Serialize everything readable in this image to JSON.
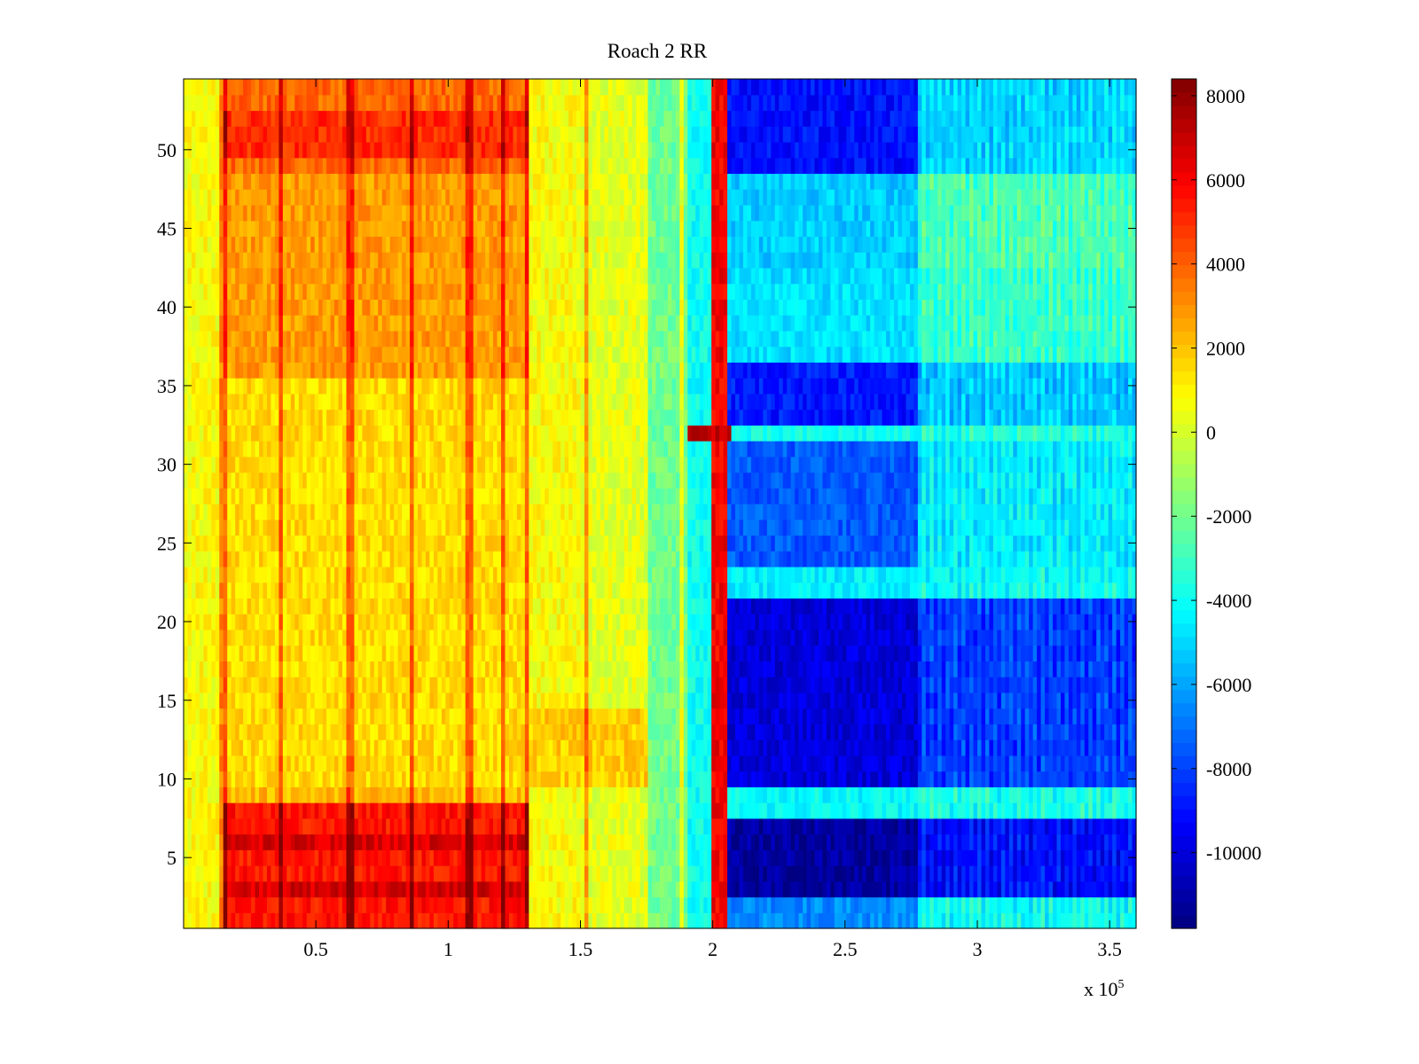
{
  "chart_data": {
    "type": "heatmap",
    "title": "Roach 2 RR",
    "xlabel": "",
    "ylabel": "",
    "x_multiplier_label": "x 10",
    "x_multiplier_exponent": "5",
    "xlim": [
      0,
      360000
    ],
    "ylim": [
      0.5,
      54.5
    ],
    "x_ticks": [
      50000,
      100000,
      150000,
      200000,
      250000,
      300000,
      350000
    ],
    "x_tick_labels": [
      "0.5",
      "1",
      "1.5",
      "2",
      "2.5",
      "3",
      "3.5"
    ],
    "y_ticks": [
      5,
      10,
      15,
      20,
      25,
      30,
      35,
      40,
      45,
      50
    ],
    "y_tick_labels": [
      "5",
      "10",
      "15",
      "20",
      "25",
      "30",
      "35",
      "40",
      "45",
      "50"
    ],
    "rows": 54,
    "colorbar": {
      "colormap": "jet",
      "clim": [
        -11800,
        8400
      ],
      "ticks": [
        8000,
        6000,
        4000,
        2000,
        0,
        -2000,
        -4000,
        -6000,
        -8000,
        -10000
      ],
      "tick_labels": [
        "8000",
        "6000",
        "4000",
        "2000",
        "0",
        "-2000",
        "-4000",
        "-6000",
        "-8000",
        "-10000"
      ]
    },
    "column_bands": [
      {
        "x_start": 0,
        "x_end": 130000,
        "approx_value": 1500
      },
      {
        "x_start": 130000,
        "x_end": 150000,
        "approx_value": 800
      },
      {
        "x_start": 150000,
        "x_end": 175000,
        "approx_value": 300
      },
      {
        "x_start": 175000,
        "x_end": 190000,
        "approx_value": -2000
      },
      {
        "x_start": 190000,
        "x_end": 199000,
        "approx_value": -4000
      },
      {
        "x_start": 199000,
        "x_end": 205000,
        "approx_value": 6000
      },
      {
        "x_start": 205000,
        "x_end": 277000,
        "approx_value": -7500
      },
      {
        "x_start": 277000,
        "x_end": 360000,
        "approx_value": -5500
      }
    ],
    "row_features": [
      {
        "rows": [
          1,
          8
        ],
        "region": "x 15000-130000",
        "approx_value": 5500
      },
      {
        "rows": [
          49,
          54
        ],
        "region": "x 15000-130000",
        "approx_value": 4500
      },
      {
        "rows": [
          36,
          48
        ],
        "region": "x 15000-130000",
        "approx_value": 3000
      },
      {
        "rows": [
          32,
          32
        ],
        "region": "x 190000-207000",
        "approx_value": 7000
      },
      {
        "rows": [
          3,
          7
        ],
        "region": "x 205000-360000",
        "approx_value": -11000
      },
      {
        "rows": [
          10,
          21
        ],
        "region": "x 205000-360000",
        "approx_value": -9500
      },
      {
        "rows": [
          22,
          23
        ],
        "region": "x 205000-360000",
        "approx_value": -4500
      },
      {
        "rows": [
          37,
          42
        ],
        "region": "x 205000-360000",
        "approx_value": -4500
      }
    ]
  }
}
